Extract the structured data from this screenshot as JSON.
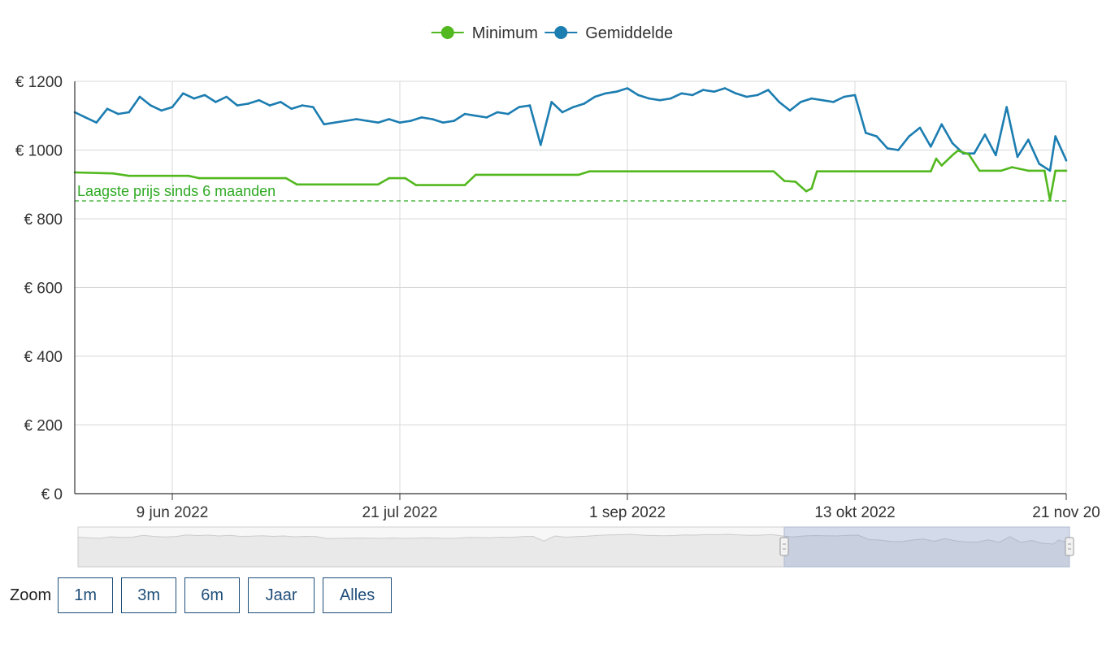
{
  "chart_data": {
    "type": "line",
    "legend": {
      "placement": "top-center",
      "items": [
        {
          "name": "Minimum",
          "color": "#52b81f"
        },
        {
          "name": "Gemiddelde",
          "color": "#1c7db1"
        }
      ]
    },
    "y_axis": {
      "range": [
        0,
        1200
      ],
      "ticks": [
        0,
        200,
        400,
        600,
        800,
        1000,
        1200
      ],
      "tick_labels": [
        "€ 0",
        "€ 200",
        "€ 400",
        "€ 600",
        "€ 800",
        "€ 1000",
        "€ 1200"
      ]
    },
    "x_axis": {
      "range": [
        "2022-05-22",
        "2022-11-21"
      ],
      "ticks": [
        "2022-06-09",
        "2022-07-21",
        "2022-09-01",
        "2022-10-13",
        "2022-11-21"
      ],
      "tick_labels": [
        "9 jun 2022",
        "21 jul 2022",
        "1 sep 2022",
        "13 okt 2022",
        "21 nov 20"
      ]
    },
    "grid": true,
    "reference_line": {
      "value": 852,
      "label": "Laagste prijs sinds 6 maanden",
      "color": "#2eaa22",
      "style": "dashed"
    },
    "series": [
      {
        "name": "Gemiddelde",
        "color": "#1c7db1",
        "points": [
          [
            "2022-05-22",
            1110
          ],
          [
            "2022-05-24",
            1095
          ],
          [
            "2022-05-26",
            1080
          ],
          [
            "2022-05-28",
            1120
          ],
          [
            "2022-05-30",
            1105
          ],
          [
            "2022-06-01",
            1110
          ],
          [
            "2022-06-03",
            1155
          ],
          [
            "2022-06-05",
            1130
          ],
          [
            "2022-06-07",
            1115
          ],
          [
            "2022-06-09",
            1125
          ],
          [
            "2022-06-11",
            1165
          ],
          [
            "2022-06-13",
            1150
          ],
          [
            "2022-06-15",
            1160
          ],
          [
            "2022-06-17",
            1140
          ],
          [
            "2022-06-19",
            1155
          ],
          [
            "2022-06-21",
            1130
          ],
          [
            "2022-06-23",
            1135
          ],
          [
            "2022-06-25",
            1145
          ],
          [
            "2022-06-27",
            1130
          ],
          [
            "2022-06-29",
            1140
          ],
          [
            "2022-07-01",
            1120
          ],
          [
            "2022-07-03",
            1130
          ],
          [
            "2022-07-05",
            1125
          ],
          [
            "2022-07-07",
            1075
          ],
          [
            "2022-07-09",
            1080
          ],
          [
            "2022-07-11",
            1085
          ],
          [
            "2022-07-13",
            1090
          ],
          [
            "2022-07-15",
            1085
          ],
          [
            "2022-07-17",
            1080
          ],
          [
            "2022-07-19",
            1090
          ],
          [
            "2022-07-21",
            1080
          ],
          [
            "2022-07-23",
            1085
          ],
          [
            "2022-07-25",
            1095
          ],
          [
            "2022-07-27",
            1090
          ],
          [
            "2022-07-29",
            1080
          ],
          [
            "2022-07-31",
            1085
          ],
          [
            "2022-08-02",
            1105
          ],
          [
            "2022-08-04",
            1100
          ],
          [
            "2022-08-06",
            1095
          ],
          [
            "2022-08-08",
            1110
          ],
          [
            "2022-08-10",
            1105
          ],
          [
            "2022-08-12",
            1125
          ],
          [
            "2022-08-14",
            1130
          ],
          [
            "2022-08-16",
            1015
          ],
          [
            "2022-08-18",
            1140
          ],
          [
            "2022-08-20",
            1110
          ],
          [
            "2022-08-22",
            1125
          ],
          [
            "2022-08-24",
            1135
          ],
          [
            "2022-08-26",
            1155
          ],
          [
            "2022-08-28",
            1165
          ],
          [
            "2022-08-30",
            1170
          ],
          [
            "2022-09-01",
            1180
          ],
          [
            "2022-09-03",
            1160
          ],
          [
            "2022-09-05",
            1150
          ],
          [
            "2022-09-07",
            1145
          ],
          [
            "2022-09-09",
            1150
          ],
          [
            "2022-09-11",
            1165
          ],
          [
            "2022-09-13",
            1160
          ],
          [
            "2022-09-15",
            1175
          ],
          [
            "2022-09-17",
            1170
          ],
          [
            "2022-09-19",
            1180
          ],
          [
            "2022-09-21",
            1165
          ],
          [
            "2022-09-23",
            1155
          ],
          [
            "2022-09-25",
            1160
          ],
          [
            "2022-09-27",
            1175
          ],
          [
            "2022-09-29",
            1140
          ],
          [
            "2022-10-01",
            1115
          ],
          [
            "2022-10-03",
            1140
          ],
          [
            "2022-10-05",
            1150
          ],
          [
            "2022-10-07",
            1145
          ],
          [
            "2022-10-09",
            1140
          ],
          [
            "2022-10-11",
            1155
          ],
          [
            "2022-10-13",
            1160
          ],
          [
            "2022-10-15",
            1050
          ],
          [
            "2022-10-17",
            1040
          ],
          [
            "2022-10-19",
            1005
          ],
          [
            "2022-10-21",
            1000
          ],
          [
            "2022-10-23",
            1040
          ],
          [
            "2022-10-25",
            1065
          ],
          [
            "2022-10-27",
            1010
          ],
          [
            "2022-10-29",
            1075
          ],
          [
            "2022-10-31",
            1020
          ],
          [
            "2022-11-02",
            990
          ],
          [
            "2022-11-04",
            990
          ],
          [
            "2022-11-06",
            1045
          ],
          [
            "2022-11-08",
            985
          ],
          [
            "2022-11-10",
            1125
          ],
          [
            "2022-11-12",
            980
          ],
          [
            "2022-11-14",
            1030
          ],
          [
            "2022-11-16",
            960
          ],
          [
            "2022-11-18",
            940
          ],
          [
            "2022-11-19",
            1040
          ],
          [
            "2022-11-21",
            970
          ]
        ]
      },
      {
        "name": "Minimum",
        "color": "#52b81f",
        "points": [
          [
            "2022-05-22",
            935
          ],
          [
            "2022-05-29",
            932
          ],
          [
            "2022-06-01",
            925
          ],
          [
            "2022-06-12",
            925
          ],
          [
            "2022-06-14",
            918
          ],
          [
            "2022-06-30",
            918
          ],
          [
            "2022-07-02",
            900
          ],
          [
            "2022-07-17",
            900
          ],
          [
            "2022-07-19",
            918
          ],
          [
            "2022-07-22",
            918
          ],
          [
            "2022-07-24",
            898
          ],
          [
            "2022-08-02",
            898
          ],
          [
            "2022-08-04",
            928
          ],
          [
            "2022-08-23",
            928
          ],
          [
            "2022-08-25",
            938
          ],
          [
            "2022-09-28",
            938
          ],
          [
            "2022-09-30",
            910
          ],
          [
            "2022-10-02",
            908
          ],
          [
            "2022-10-04",
            880
          ],
          [
            "2022-10-05",
            888
          ],
          [
            "2022-10-06",
            938
          ],
          [
            "2022-10-27",
            938
          ],
          [
            "2022-10-28",
            975
          ],
          [
            "2022-10-29",
            955
          ],
          [
            "2022-10-31",
            985
          ],
          [
            "2022-11-01",
            998
          ],
          [
            "2022-11-03",
            988
          ],
          [
            "2022-11-05",
            940
          ],
          [
            "2022-11-09",
            940
          ],
          [
            "2022-11-11",
            950
          ],
          [
            "2022-11-14",
            940
          ],
          [
            "2022-11-17",
            940
          ],
          [
            "2022-11-18",
            855
          ],
          [
            "2022-11-19",
            940
          ],
          [
            "2022-11-21",
            940
          ]
        ]
      }
    ]
  },
  "zoom": {
    "label": "Zoom",
    "buttons": [
      "1m",
      "3m",
      "6m",
      "Jaar",
      "Alles"
    ]
  }
}
